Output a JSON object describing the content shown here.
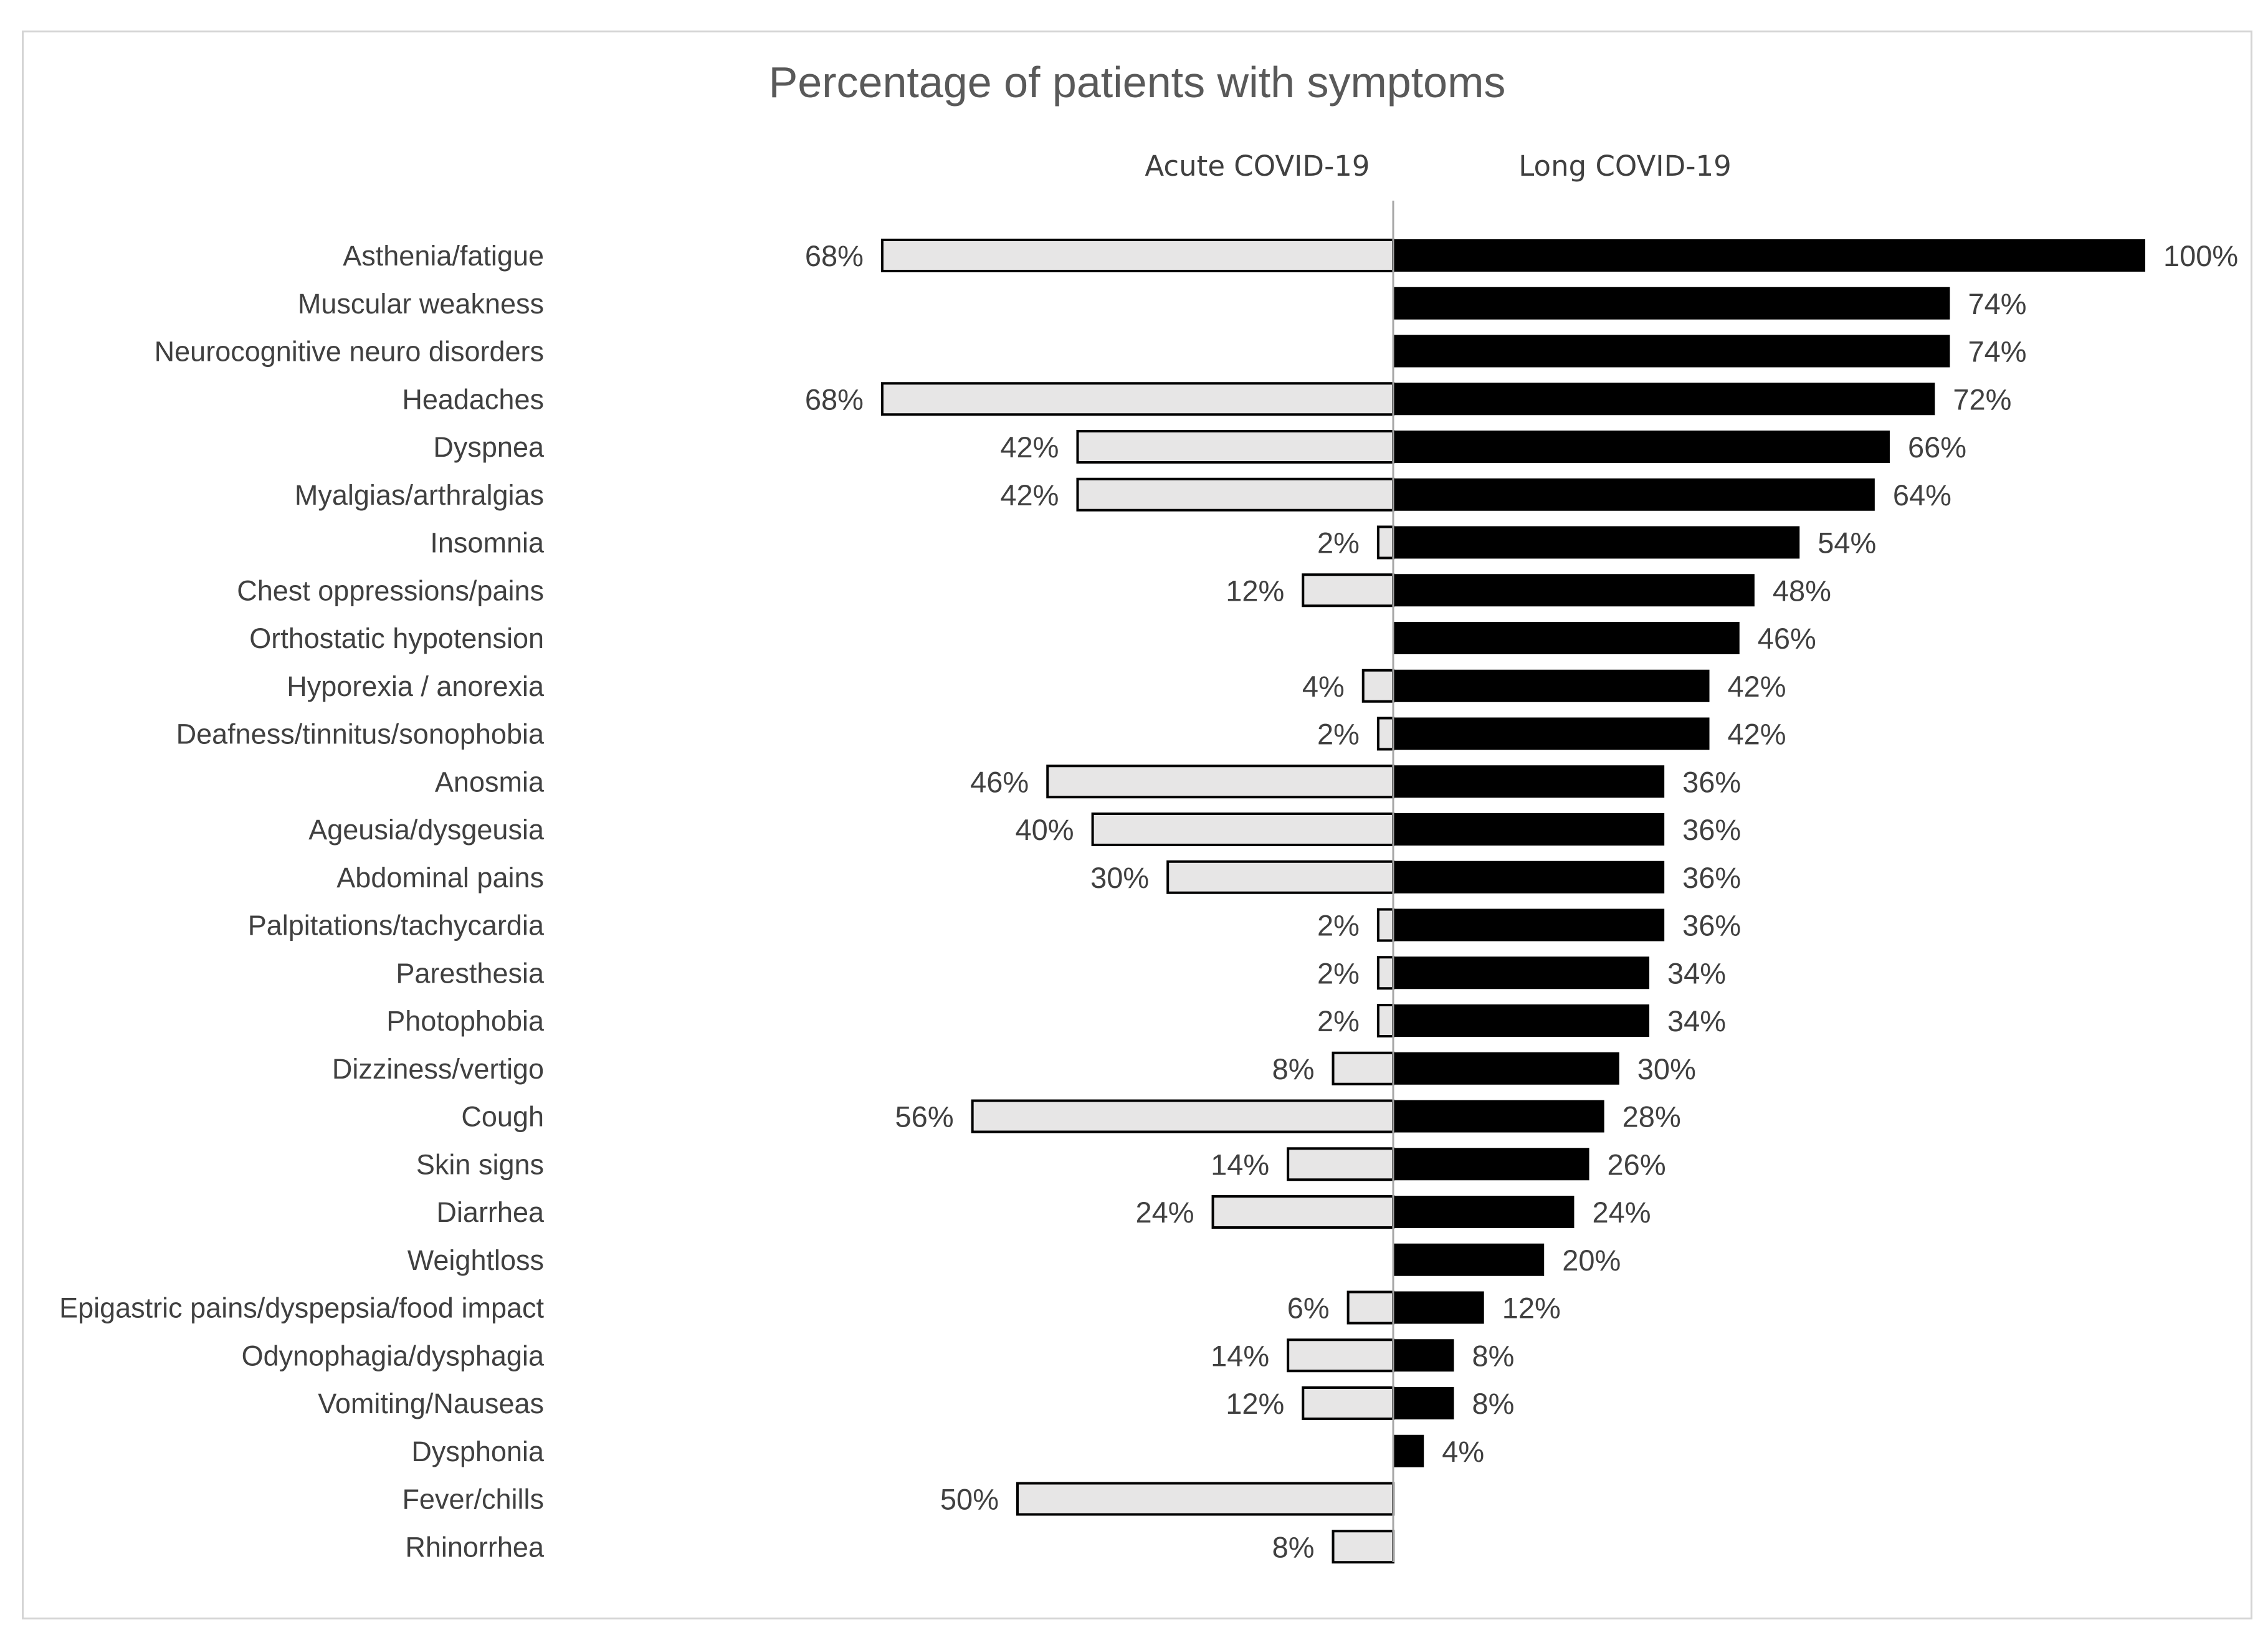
{
  "chart_data": {
    "type": "bar",
    "orientation": "horizontal",
    "title": "Percentage of patients with symptoms",
    "xlim": [
      0,
      100
    ],
    "grid": false,
    "legend": "none",
    "categories": [
      "Asthenia/fatigue",
      "Muscular weakness",
      "Neurocognitive neuro disorders",
      "Headaches",
      "Dyspnea",
      "Myalgias/arthralgias",
      "Insomnia",
      "Chest oppressions/pains",
      "Orthostatic hypotension",
      "Hyporexia / anorexia",
      "Deafness/tinnitus/sonophobia",
      "Anosmia",
      "Ageusia/dysgeusia",
      "Abdominal  pains",
      "Palpitations/tachycardia",
      "Paresthesia",
      "Photophobia",
      "Dizziness/vertigo",
      "Cough",
      "Skin signs",
      "Diarrhea",
      "Weightloss",
      "Epigastric pains/dyspepsia/food impact",
      "Odynophagia/dysphagia",
      "Vomiting/Nauseas",
      "Dysphonia",
      "Fever/chills",
      "Rhinorrhea"
    ],
    "series": [
      {
        "name": "Acute COVID-19",
        "color": "#e7e6e6",
        "stroke": "#000000",
        "direction": "left",
        "values": [
          68,
          null,
          null,
          68,
          42,
          42,
          2,
          12,
          null,
          4,
          2,
          46,
          40,
          30,
          2,
          2,
          2,
          8,
          56,
          14,
          24,
          null,
          6,
          14,
          12,
          null,
          50,
          8
        ],
        "labels": [
          "68%",
          "",
          "",
          "68%",
          "42%",
          "42%",
          "2%",
          "12%",
          "",
          "4%",
          "2%",
          "46%",
          "40%",
          "30%",
          "2%",
          "2%",
          "2%",
          "8%",
          "56%",
          "14%",
          "24%",
          "",
          "6%",
          "14%",
          "12%",
          "",
          "50%",
          "8%"
        ]
      },
      {
        "name": "Long COVID-19",
        "color": "#000000",
        "stroke": "#000000",
        "direction": "right",
        "values": [
          100,
          74,
          74,
          72,
          66,
          64,
          54,
          48,
          46,
          42,
          42,
          36,
          36,
          36,
          36,
          34,
          34,
          30,
          28,
          26,
          24,
          20,
          12,
          8,
          8,
          4,
          null,
          null
        ],
        "labels": [
          "100%",
          "74%",
          "74%",
          "72%",
          "66%",
          "64%",
          "54%",
          "48%",
          "46%",
          "42%",
          "42%",
          "36%",
          "36%",
          "36%",
          "36%",
          "34%",
          "34%",
          "30%",
          "28%",
          "26%",
          "24%",
          "20%",
          "12%",
          "8%",
          "8%",
          "4%",
          "",
          ""
        ]
      }
    ]
  }
}
